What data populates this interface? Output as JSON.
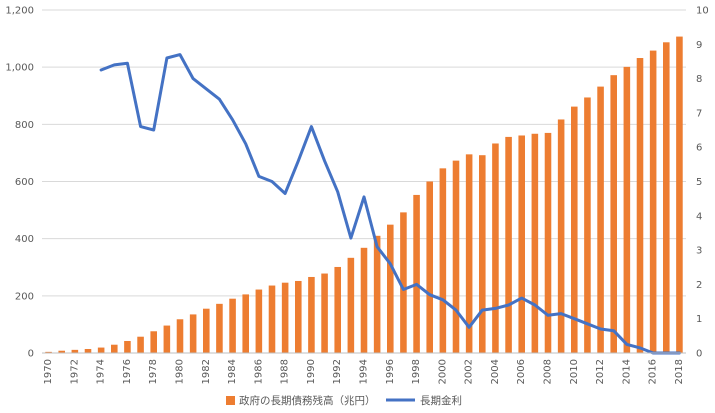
{
  "chart_data": {
    "type": "bar+line",
    "title": "",
    "xlabel": "",
    "ylabel": "",
    "x": [
      "1970",
      "1971",
      "1972",
      "1973",
      "1974",
      "1975",
      "1976",
      "1977",
      "1978",
      "1979",
      "1980",
      "1981",
      "1982",
      "1983",
      "1984",
      "1985",
      "1986",
      "1987",
      "1988",
      "1989",
      "1990",
      "1991",
      "1992",
      "1993",
      "1994",
      "1995",
      "1996",
      "1997",
      "1998",
      "1999",
      "2000",
      "2001",
      "2002",
      "2003",
      "2004",
      "2005",
      "2006",
      "2007",
      "2008",
      "2009",
      "2010",
      "2011",
      "2012",
      "2013",
      "2014",
      "2015",
      "2016",
      "2017",
      "2018"
    ],
    "x_tick_labels": [
      "1970",
      "1972",
      "1974",
      "1976",
      "1978",
      "1980",
      "1982",
      "1984",
      "1986",
      "1988",
      "1990",
      "1992",
      "1994",
      "1996",
      "1998",
      "2000",
      "2002",
      "2004",
      "2006",
      "2008",
      "2010",
      "2012",
      "2014",
      "2016",
      "2018"
    ],
    "y_left": {
      "min": 0,
      "max": 1200,
      "ticks": [
        0,
        200,
        400,
        600,
        800,
        1000,
        1200
      ],
      "tick_labels": [
        "0",
        "200",
        "400",
        "600",
        "800",
        "1,000",
        "1,200"
      ]
    },
    "y_right": {
      "min": 0,
      "max": 10,
      "ticks": [
        0,
        1,
        2,
        3,
        4,
        5,
        6,
        7,
        8,
        9,
        10
      ],
      "tick_labels": [
        "0",
        "1",
        "2",
        "3",
        "4",
        "5",
        "6",
        "7",
        "8",
        "9",
        "10"
      ]
    },
    "grid": true,
    "legend_position": "bottom",
    "series": [
      {
        "name": "政府の長期債務残高（兆円）",
        "type": "bar",
        "axis": "left",
        "color": "#ed7d31",
        "values": [
          4,
          8,
          11,
          14,
          19,
          29,
          42,
          57,
          76,
          96,
          118,
          135,
          155,
          172,
          190,
          205,
          222,
          236,
          246,
          252,
          266,
          278,
          301,
          333,
          368,
          410,
          449,
          492,
          553,
          600,
          646,
          673,
          695,
          692,
          733,
          756,
          761,
          767,
          770,
          817,
          862,
          894,
          932,
          972,
          1001,
          1032,
          1058,
          1087,
          1107
        ]
      },
      {
        "name": "長期金利",
        "type": "line",
        "axis": "right",
        "color": "#4472c4",
        "values": [
          null,
          null,
          null,
          null,
          8.25,
          8.4,
          8.45,
          6.6,
          6.5,
          8.6,
          8.7,
          8.0,
          7.7,
          7.4,
          6.8,
          6.1,
          5.15,
          5.0,
          4.65,
          5.6,
          6.6,
          5.6,
          4.7,
          3.35,
          4.55,
          3.1,
          2.6,
          1.85,
          2.0,
          1.7,
          1.55,
          1.25,
          0.75,
          1.25,
          1.3,
          1.4,
          1.6,
          1.4,
          1.1,
          1.15,
          1.0,
          0.85,
          0.7,
          0.65,
          0.25,
          0.15,
          0.0,
          0.0,
          0.0
        ]
      }
    ]
  }
}
